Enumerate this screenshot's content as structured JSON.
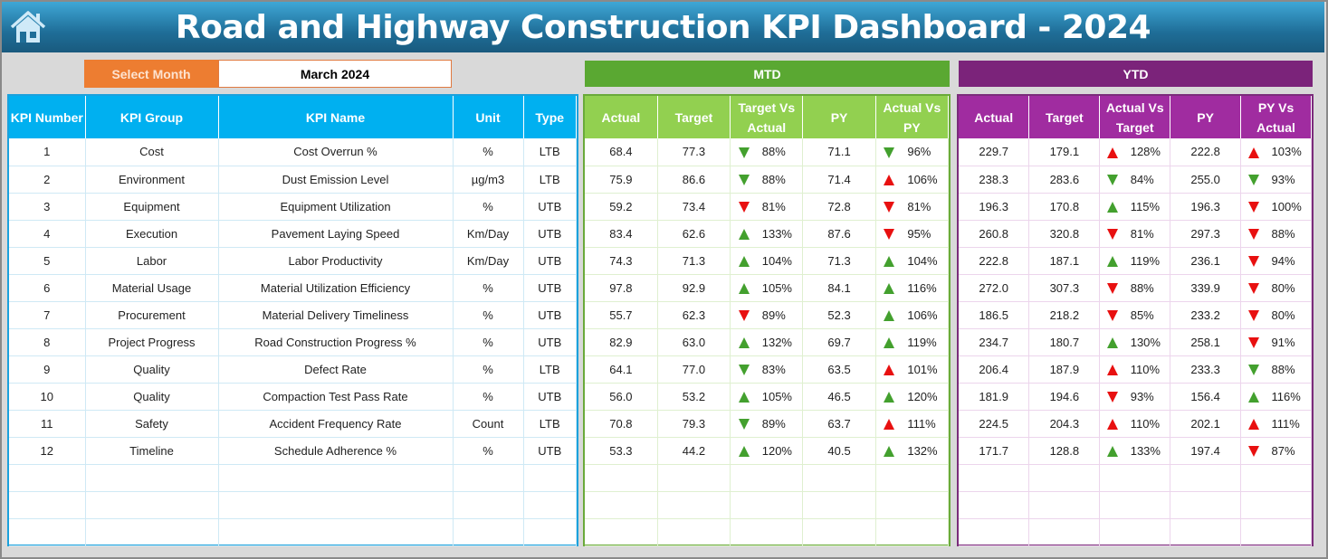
{
  "header": {
    "title": "Road and Highway Construction KPI Dashboard - 2024",
    "home_icon": "home-icon"
  },
  "month_selector": {
    "label": "Select Month",
    "value": "March 2024"
  },
  "sections": {
    "mtd": "MTD",
    "ytd": "YTD"
  },
  "colors": {
    "kpi_header": "#00b0f0",
    "mtd_band": "#5aa832",
    "mtd_header": "#92d050",
    "ytd_band": "#7b237a",
    "ytd_header": "#a02ca0",
    "arrow_green": "#43a02e",
    "arrow_red": "#e81010"
  },
  "kpi_columns": [
    "KPI Number",
    "KPI Group",
    "KPI Name",
    "Unit",
    "Type"
  ],
  "mtd_columns": [
    "Actual",
    "Target",
    "Target Vs Actual",
    "PY",
    "Actual Vs PY"
  ],
  "ytd_columns": [
    "Actual",
    "Target",
    "Actual Vs Target",
    "PY",
    "PY Vs Actual"
  ],
  "kpis": [
    {
      "num": "1",
      "group": "Cost",
      "name": "Cost Overrun %",
      "unit": "%",
      "type": "LTB"
    },
    {
      "num": "2",
      "group": "Environment",
      "name": "Dust Emission Level",
      "unit": "µg/m3",
      "type": "LTB"
    },
    {
      "num": "3",
      "group": "Equipment",
      "name": "Equipment Utilization",
      "unit": "%",
      "type": "UTB"
    },
    {
      "num": "4",
      "group": "Execution",
      "name": "Pavement Laying Speed",
      "unit": "Km/Day",
      "type": "UTB"
    },
    {
      "num": "5",
      "group": "Labor",
      "name": "Labor Productivity",
      "unit": "Km/Day",
      "type": "UTB"
    },
    {
      "num": "6",
      "group": "Material Usage",
      "name": "Material Utilization Efficiency",
      "unit": "%",
      "type": "UTB"
    },
    {
      "num": "7",
      "group": "Procurement",
      "name": "Material Delivery Timeliness",
      "unit": "%",
      "type": "UTB"
    },
    {
      "num": "8",
      "group": "Project Progress",
      "name": "Road Construction Progress %",
      "unit": "%",
      "type": "UTB"
    },
    {
      "num": "9",
      "group": "Quality",
      "name": "Defect Rate",
      "unit": "%",
      "type": "LTB"
    },
    {
      "num": "10",
      "group": "Quality",
      "name": "Compaction Test Pass Rate",
      "unit": "%",
      "type": "UTB"
    },
    {
      "num": "11",
      "group": "Safety",
      "name": "Accident Frequency Rate",
      "unit": "Count",
      "type": "LTB"
    },
    {
      "num": "12",
      "group": "Timeline",
      "name": "Schedule Adherence %",
      "unit": "%",
      "type": "UTB"
    }
  ],
  "mtd": [
    {
      "actual": "68.4",
      "target": "77.3",
      "tva": "88%",
      "tva_icon": "down-green",
      "py": "71.1",
      "avp": "96%",
      "avp_icon": "down-green"
    },
    {
      "actual": "75.9",
      "target": "86.6",
      "tva": "88%",
      "tva_icon": "down-green",
      "py": "71.4",
      "avp": "106%",
      "avp_icon": "up-red"
    },
    {
      "actual": "59.2",
      "target": "73.4",
      "tva": "81%",
      "tva_icon": "down-red",
      "py": "72.8",
      "avp": "81%",
      "avp_icon": "down-red"
    },
    {
      "actual": "83.4",
      "target": "62.6",
      "tva": "133%",
      "tva_icon": "up-green",
      "py": "87.6",
      "avp": "95%",
      "avp_icon": "down-red"
    },
    {
      "actual": "74.3",
      "target": "71.3",
      "tva": "104%",
      "tva_icon": "up-green",
      "py": "71.3",
      "avp": "104%",
      "avp_icon": "up-green"
    },
    {
      "actual": "97.8",
      "target": "92.9",
      "tva": "105%",
      "tva_icon": "up-green",
      "py": "84.1",
      "avp": "116%",
      "avp_icon": "up-green"
    },
    {
      "actual": "55.7",
      "target": "62.3",
      "tva": "89%",
      "tva_icon": "down-red",
      "py": "52.3",
      "avp": "106%",
      "avp_icon": "up-green"
    },
    {
      "actual": "82.9",
      "target": "63.0",
      "tva": "132%",
      "tva_icon": "up-green",
      "py": "69.7",
      "avp": "119%",
      "avp_icon": "up-green"
    },
    {
      "actual": "64.1",
      "target": "77.0",
      "tva": "83%",
      "tva_icon": "down-green",
      "py": "63.5",
      "avp": "101%",
      "avp_icon": "up-red"
    },
    {
      "actual": "56.0",
      "target": "53.2",
      "tva": "105%",
      "tva_icon": "up-green",
      "py": "46.5",
      "avp": "120%",
      "avp_icon": "up-green"
    },
    {
      "actual": "70.8",
      "target": "79.3",
      "tva": "89%",
      "tva_icon": "down-green",
      "py": "63.7",
      "avp": "111%",
      "avp_icon": "up-red"
    },
    {
      "actual": "53.3",
      "target": "44.2",
      "tva": "120%",
      "tva_icon": "up-green",
      "py": "40.5",
      "avp": "132%",
      "avp_icon": "up-green"
    }
  ],
  "ytd": [
    {
      "actual": "229.7",
      "target": "179.1",
      "tva": "128%",
      "tva_icon": "up-red",
      "py": "222.8",
      "avp": "103%",
      "avp_icon": "up-red"
    },
    {
      "actual": "238.3",
      "target": "283.6",
      "tva": "84%",
      "tva_icon": "down-green",
      "py": "255.0",
      "avp": "93%",
      "avp_icon": "down-green"
    },
    {
      "actual": "196.3",
      "target": "170.8",
      "tva": "115%",
      "tva_icon": "up-green",
      "py": "196.3",
      "avp": "100%",
      "avp_icon": "down-red"
    },
    {
      "actual": "260.8",
      "target": "320.8",
      "tva": "81%",
      "tva_icon": "down-red",
      "py": "297.3",
      "avp": "88%",
      "avp_icon": "down-red"
    },
    {
      "actual": "222.8",
      "target": "187.1",
      "tva": "119%",
      "tva_icon": "up-green",
      "py": "236.1",
      "avp": "94%",
      "avp_icon": "down-red"
    },
    {
      "actual": "272.0",
      "target": "307.3",
      "tva": "88%",
      "tva_icon": "down-red",
      "py": "339.9",
      "avp": "80%",
      "avp_icon": "down-red"
    },
    {
      "actual": "186.5",
      "target": "218.2",
      "tva": "85%",
      "tva_icon": "down-red",
      "py": "233.2",
      "avp": "80%",
      "avp_icon": "down-red"
    },
    {
      "actual": "234.7",
      "target": "180.7",
      "tva": "130%",
      "tva_icon": "up-green",
      "py": "258.1",
      "avp": "91%",
      "avp_icon": "down-red"
    },
    {
      "actual": "206.4",
      "target": "187.9",
      "tva": "110%",
      "tva_icon": "up-red",
      "py": "233.3",
      "avp": "88%",
      "avp_icon": "down-green"
    },
    {
      "actual": "181.9",
      "target": "194.6",
      "tva": "93%",
      "tva_icon": "down-red",
      "py": "156.4",
      "avp": "116%",
      "avp_icon": "up-green"
    },
    {
      "actual": "224.5",
      "target": "204.3",
      "tva": "110%",
      "tva_icon": "up-red",
      "py": "202.1",
      "avp": "111%",
      "avp_icon": "up-red"
    },
    {
      "actual": "171.7",
      "target": "128.8",
      "tva": "133%",
      "tva_icon": "up-green",
      "py": "197.4",
      "avp": "87%",
      "avp_icon": "down-red"
    }
  ]
}
